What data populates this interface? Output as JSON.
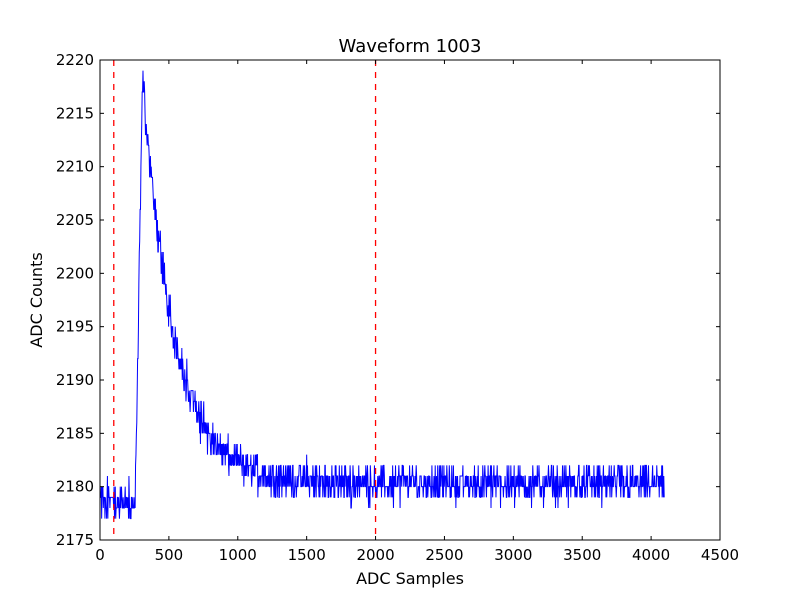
{
  "chart_data": {
    "type": "line",
    "title": "Waveform 1003",
    "xlabel": "ADC Samples",
    "ylabel": "ADC Counts",
    "xlim": [
      0,
      4500
    ],
    "ylim": [
      2175,
      2220
    ],
    "xticks": [
      0,
      500,
      1000,
      1500,
      2000,
      2500,
      3000,
      3500,
      4000,
      4500
    ],
    "yticks": [
      2175,
      2180,
      2185,
      2190,
      2195,
      2200,
      2205,
      2210,
      2215,
      2220
    ],
    "grid": false,
    "legend": "none",
    "vlines": [
      {
        "x": 100,
        "style": "dashed",
        "color": "#ff0000"
      },
      {
        "x": 2000,
        "style": "dashed",
        "color": "#ff0000"
      }
    ],
    "series": [
      {
        "color": "#0000ff",
        "shape": {
          "baseline": 2178.7,
          "rise_start": 255,
          "peak_x": 310,
          "peak": 2219,
          "decay_tau": 230,
          "tail": 2180.3,
          "noise_pre": 1.5,
          "noise_post": 1.6,
          "x_end": 4095
        },
        "anchors": [
          [
            0,
            2179
          ],
          [
            100,
            2178
          ],
          [
            200,
            2179
          ],
          [
            255,
            2178
          ],
          [
            280,
            2205
          ],
          [
            300,
            2218
          ],
          [
            350,
            2215
          ],
          [
            400,
            2209
          ],
          [
            450,
            2203
          ],
          [
            500,
            2199
          ],
          [
            600,
            2194
          ],
          [
            700,
            2189
          ],
          [
            800,
            2187
          ],
          [
            900,
            2184
          ],
          [
            1000,
            2183
          ],
          [
            1200,
            2181
          ],
          [
            1500,
            2180
          ],
          [
            2000,
            2180
          ],
          [
            3000,
            2180
          ],
          [
            4095,
            2180
          ]
        ]
      }
    ]
  }
}
